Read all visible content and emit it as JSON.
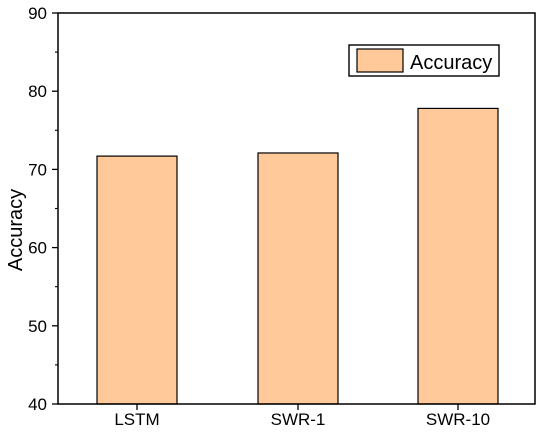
{
  "chart_data": {
    "type": "bar",
    "title": "",
    "xlabel": "",
    "ylabel": "Accuracy",
    "categories": [
      "LSTM",
      "SWR-1",
      "SWR-10"
    ],
    "series": [
      {
        "name": "Accuracy",
        "values": [
          71.7,
          72.1,
          77.8
        ]
      }
    ],
    "ylim": [
      40,
      90
    ],
    "yticks": [
      40,
      50,
      60,
      70,
      80,
      90
    ],
    "grid": false,
    "legend": "top-right",
    "colors": {
      "bar_fill": "#FFC99A",
      "bar_stroke": "#000000",
      "axis": "#000000",
      "background": "#FFFFFF"
    }
  }
}
